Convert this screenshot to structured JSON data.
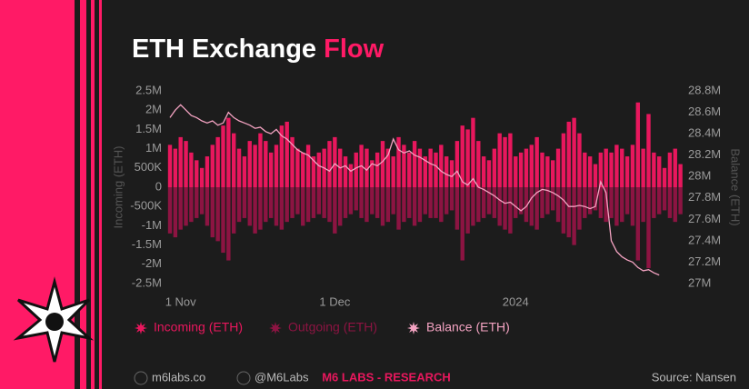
{
  "chart_data": {
    "type": "bar_line",
    "title": "ETH Exchange Flow",
    "title_highlight": "Flow",
    "y_axis_label": "Incoming (ETH)",
    "y2_axis_label": "Balance (ETH)",
    "categories": [
      null,
      null,
      "1 Nov",
      null,
      null,
      null,
      null,
      null,
      null,
      null,
      null,
      null,
      null,
      null,
      null,
      null,
      null,
      null,
      null,
      null,
      null,
      null,
      null,
      null,
      null,
      null,
      null,
      null,
      null,
      null,
      null,
      "1 Dec",
      null,
      null,
      null,
      null,
      null,
      null,
      null,
      null,
      null,
      null,
      null,
      null,
      null,
      null,
      null,
      null,
      null,
      null,
      null,
      null,
      null,
      null,
      null,
      null,
      null,
      null,
      null,
      null,
      null,
      null,
      null,
      null,
      null,
      "2024",
      null,
      null,
      null,
      null,
      null,
      null,
      null,
      null,
      null,
      null,
      null,
      null,
      null,
      null,
      null,
      null,
      null,
      null,
      null,
      null,
      null,
      null,
      null,
      null,
      null,
      null,
      null,
      null,
      null,
      null,
      null
    ],
    "series": [
      {
        "name": "Incoming (ETH)",
        "color": "#e8175d",
        "values": [
          1.1,
          1.0,
          1.3,
          1.2,
          0.9,
          0.7,
          0.5,
          0.8,
          1.1,
          1.3,
          1.6,
          1.8,
          1.4,
          1.0,
          0.8,
          1.2,
          1.1,
          1.4,
          1.2,
          0.9,
          1.1,
          1.6,
          1.7,
          1.3,
          1.0,
          0.9,
          1.1,
          0.8,
          0.9,
          1.0,
          1.2,
          1.3,
          1.0,
          0.8,
          0.6,
          0.9,
          1.1,
          1.0,
          0.7,
          0.9,
          1.2,
          1.0,
          0.8,
          1.3,
          1.1,
          0.9,
          1.2,
          1.0,
          0.8,
          1.0,
          0.9,
          1.1,
          0.8,
          0.7,
          1.2,
          1.6,
          1.5,
          1.8,
          1.2,
          0.8,
          0.7,
          1.0,
          1.4,
          1.3,
          1.4,
          0.8,
          0.9,
          1.0,
          1.1,
          1.3,
          0.9,
          0.8,
          0.7,
          1.0,
          1.4,
          1.7,
          1.8,
          1.4,
          0.9,
          0.8,
          0.6,
          0.9,
          1.0,
          0.9,
          1.1,
          1.0,
          0.8,
          1.1,
          2.2,
          1.0,
          1.9,
          0.9,
          0.8,
          0.5,
          0.9,
          1.0,
          0.6
        ]
      },
      {
        "name": "Outgoing (ETH)",
        "color": "#8c1442",
        "values": [
          -1.2,
          -1.3,
          -1.1,
          -1.0,
          -0.9,
          -0.8,
          -0.7,
          -1.0,
          -1.3,
          -1.4,
          -1.7,
          -1.9,
          -1.2,
          -0.9,
          -0.8,
          -1.0,
          -1.2,
          -1.1,
          -0.9,
          -0.8,
          -1.0,
          -1.1,
          -0.9,
          -0.8,
          -0.7,
          -1.0,
          -0.9,
          -0.8,
          -0.7,
          -0.8,
          -0.9,
          -1.2,
          -1.0,
          -0.8,
          -0.7,
          -0.6,
          -0.8,
          -0.9,
          -0.7,
          -0.8,
          -1.0,
          -0.9,
          -0.7,
          -1.1,
          -0.9,
          -0.8,
          -1.0,
          -0.9,
          -0.7,
          -0.8,
          -0.8,
          -0.9,
          -0.7,
          -0.6,
          -1.1,
          -1.9,
          -1.2,
          -1.0,
          -0.9,
          -0.8,
          -0.7,
          -0.8,
          -1.0,
          -1.1,
          -1.2,
          -0.8,
          -0.7,
          -0.9,
          -1.0,
          -1.1,
          -0.8,
          -0.7,
          -0.6,
          -0.9,
          -1.2,
          -1.3,
          -1.5,
          -1.1,
          -0.8,
          -0.7,
          -0.6,
          -0.8,
          -0.9,
          -0.8,
          -1.0,
          -0.9,
          -0.7,
          -1.0,
          -1.9,
          -0.9,
          -2.1,
          -0.8,
          -0.7,
          -0.6,
          -0.8,
          -0.9,
          -0.7
        ]
      },
      {
        "name": "Balance (ETH)",
        "color": "#f4a3c2",
        "axis": "y2",
        "values": [
          28.55,
          28.62,
          28.67,
          28.62,
          28.57,
          28.55,
          28.52,
          28.5,
          28.52,
          28.48,
          28.5,
          28.6,
          28.55,
          28.52,
          28.5,
          28.48,
          28.45,
          28.46,
          28.42,
          28.4,
          28.44,
          28.38,
          28.35,
          28.3,
          28.25,
          28.22,
          28.2,
          28.15,
          28.1,
          28.08,
          28.05,
          28.12,
          28.08,
          28.1,
          28.05,
          28.08,
          28.1,
          28.06,
          28.12,
          28.1,
          28.14,
          28.2,
          28.35,
          28.25,
          28.22,
          28.24,
          28.2,
          28.18,
          28.15,
          28.12,
          28.1,
          28.05,
          28.02,
          28.0,
          28.05,
          27.95,
          27.92,
          27.98,
          27.9,
          27.88,
          27.85,
          27.82,
          27.78,
          27.75,
          27.76,
          27.72,
          27.68,
          27.72,
          27.8,
          27.85,
          27.88,
          27.87,
          27.85,
          27.82,
          27.78,
          27.72,
          27.72,
          27.73,
          27.72,
          27.7,
          27.72,
          27.95,
          27.85,
          27.4,
          27.3,
          27.25,
          27.22,
          27.2,
          27.15,
          27.12,
          27.13,
          27.1,
          27.08,
          null,
          null,
          null,
          null
        ]
      }
    ],
    "ylim": [
      -2.5,
      2.5
    ],
    "yticks": [
      {
        "value": 2.5,
        "label": "2.5M"
      },
      {
        "value": 2,
        "label": "2M"
      },
      {
        "value": 1.5,
        "label": "1.5M"
      },
      {
        "value": 1,
        "label": "1M"
      },
      {
        "value": 0.5,
        "label": "500K"
      },
      0,
      {
        "value": -0.5,
        "label": "-500K"
      },
      {
        "value": -1,
        "label": "-1M"
      },
      {
        "value": -1.5,
        "label": "-1.5M"
      },
      {
        "value": -2,
        "label": "-2M"
      },
      {
        "value": -2.5,
        "label": "-2.5M"
      }
    ],
    "y2lim": [
      27,
      28.8
    ],
    "y2ticks": [
      {
        "value": 28.8,
        "label": "28.8M"
      },
      {
        "value": 28.6,
        "label": "28.6M"
      },
      {
        "value": 28.4,
        "label": "28.4M"
      },
      {
        "value": 28.2,
        "label": "28.2M"
      },
      {
        "value": 28,
        "label": "28M"
      },
      {
        "value": 27.8,
        "label": "27.8M"
      },
      {
        "value": 27.6,
        "label": "27.6M"
      },
      {
        "value": 27.4,
        "label": "27.4M"
      },
      {
        "value": 27.2,
        "label": "27.2M"
      },
      {
        "value": 27,
        "label": "27M"
      }
    ],
    "grid": false
  },
  "footer": {
    "website": "m6labs.co",
    "handle": "@M6Labs",
    "brand": "M6 LABS - RESEARCH",
    "source": "Source: Nansen"
  }
}
